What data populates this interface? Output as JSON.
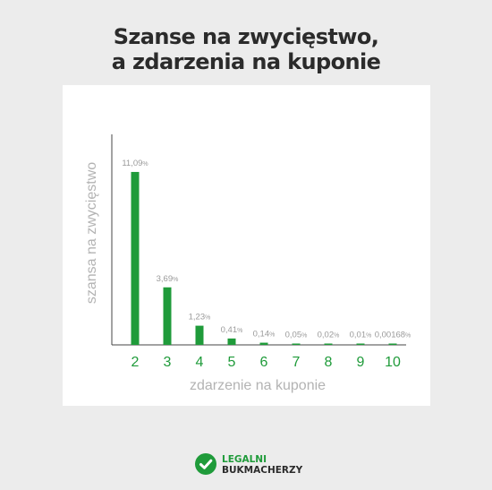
{
  "header": {
    "title_line1": "Szanse na zwycięstwo,",
    "title_line2": "a zdarzenia na kuponie"
  },
  "logo": {
    "icon": "checkmark-icon",
    "line1": "LEGALNI",
    "line2": "BUKMACHERZY"
  },
  "colors": {
    "background": "#ececec",
    "card": "#ffffff",
    "bar": "#1f9b3a",
    "tick_label": "#1f9b3a",
    "data_label": "#9a9a9a",
    "axis_title": "#b3b3b3",
    "axis_line": "#444444"
  },
  "chart_data": {
    "type": "bar",
    "categories": [
      "2",
      "3",
      "4",
      "5",
      "6",
      "7",
      "8",
      "9",
      "10"
    ],
    "series": [
      {
        "values": [
          11.09,
          3.69,
          1.23,
          0.41,
          0.14,
          0.05,
          0.02,
          0.01,
          0.00168
        ]
      }
    ],
    "data_labels": [
      "11,09",
      "3,69",
      "1,23",
      "0,41",
      "0,14",
      "0,05",
      "0,02",
      "0,01",
      "0,00168"
    ],
    "data_label_unit": "%",
    "xlabel": "zdarzenie na kuponie",
    "ylabel": "szansa na zwycięstwo",
    "ylim": [
      0,
      13.5
    ],
    "grid": false,
    "legend": "none"
  }
}
